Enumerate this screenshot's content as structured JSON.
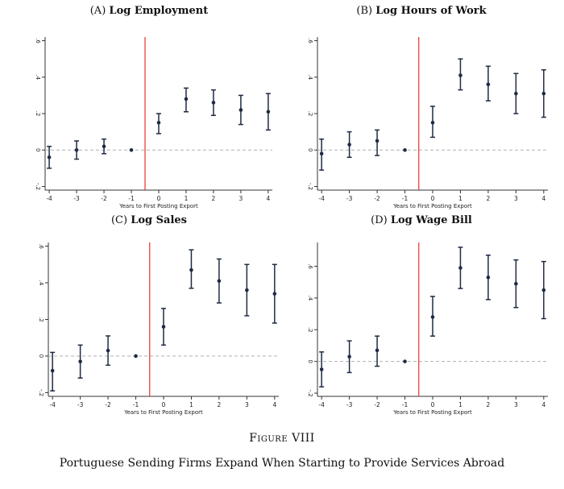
{
  "figure": {
    "number": "Figure VIII",
    "caption": "Portuguese Sending Firms Expand When Starting to Provide Services Abroad"
  },
  "colors": {
    "point": "#1f2a44",
    "event_line": "#e8302a",
    "zero_line": "#b0b0b0",
    "axis": "#333333"
  },
  "chart_data": [
    {
      "type": "scatter",
      "panel_letter": "(A)",
      "title": "Log Employment",
      "xlabel": "Years to First Posting Export",
      "ylabel": "",
      "x": [
        -4,
        -3,
        -2,
        -1,
        0,
        1,
        2,
        3,
        4
      ],
      "y": [
        -0.04,
        0.0,
        0.02,
        0.0,
        0.15,
        0.28,
        0.26,
        0.22,
        0.21
      ],
      "ci_low": [
        -0.1,
        -0.05,
        -0.02,
        0.0,
        0.09,
        0.21,
        0.19,
        0.14,
        0.11
      ],
      "ci_high": [
        0.02,
        0.05,
        0.06,
        0.0,
        0.2,
        0.34,
        0.33,
        0.3,
        0.31
      ],
      "xticks": [
        -4,
        -3,
        -2,
        -1,
        0,
        1,
        2,
        3,
        4
      ],
      "yticks": [
        -0.2,
        0,
        0.2,
        0.4,
        0.6
      ],
      "ytick_labels": [
        "-.2",
        "0",
        ".2",
        ".4",
        ".6"
      ],
      "ylim": [
        -0.22,
        0.62
      ],
      "xlim": [
        -4.15,
        4.15
      ],
      "event_line_x": -0.5,
      "reference_line_y": 0
    },
    {
      "type": "scatter",
      "panel_letter": "(B)",
      "title": "Log Hours of Work",
      "xlabel": "Years to First Posting Export",
      "ylabel": "",
      "x": [
        -4,
        -3,
        -2,
        -1,
        0,
        1,
        2,
        3,
        4
      ],
      "y": [
        -0.02,
        0.03,
        0.05,
        0.0,
        0.15,
        0.41,
        0.36,
        0.31,
        0.31
      ],
      "ci_low": [
        -0.11,
        -0.04,
        -0.03,
        0.0,
        0.07,
        0.33,
        0.27,
        0.2,
        0.18
      ],
      "ci_high": [
        0.06,
        0.1,
        0.11,
        0.0,
        0.24,
        0.5,
        0.46,
        0.42,
        0.44
      ],
      "xticks": [
        -4,
        -3,
        -2,
        -1,
        0,
        1,
        2,
        3,
        4
      ],
      "yticks": [
        -0.2,
        0,
        0.2,
        0.4,
        0.6
      ],
      "ytick_labels": [
        "-.2",
        "0",
        ".2",
        ".4",
        ".6"
      ],
      "ylim": [
        -0.22,
        0.62
      ],
      "xlim": [
        -4.15,
        4.15
      ],
      "event_line_x": -0.5,
      "reference_line_y": 0
    },
    {
      "type": "scatter",
      "panel_letter": "(C)",
      "title": "Log Sales",
      "xlabel": "Years to First Posting Export",
      "ylabel": "",
      "x": [
        -4,
        -3,
        -2,
        -1,
        0,
        1,
        2,
        3,
        4
      ],
      "y": [
        -0.08,
        -0.03,
        0.03,
        0.0,
        0.16,
        0.47,
        0.41,
        0.36,
        0.34
      ],
      "ci_low": [
        -0.19,
        -0.12,
        -0.05,
        0.0,
        0.06,
        0.37,
        0.29,
        0.22,
        0.18
      ],
      "ci_high": [
        0.02,
        0.06,
        0.11,
        0.0,
        0.26,
        0.58,
        0.53,
        0.5,
        0.5
      ],
      "xticks": [
        -4,
        -3,
        -2,
        -1,
        0,
        1,
        2,
        3,
        4
      ],
      "yticks": [
        -0.2,
        0,
        0.2,
        0.4,
        0.6
      ],
      "ytick_labels": [
        "-.2",
        "0",
        ".2",
        ".4",
        ".6"
      ],
      "ylim": [
        -0.22,
        0.62
      ],
      "xlim": [
        -4.15,
        4.15
      ],
      "event_line_x": -0.5,
      "reference_line_y": 0
    },
    {
      "type": "scatter",
      "panel_letter": "(D)",
      "title": "Log Wage Bill",
      "xlabel": "Years to First Posting Export",
      "ylabel": "",
      "x": [
        -4,
        -3,
        -2,
        -1,
        0,
        1,
        2,
        3,
        4
      ],
      "y": [
        -0.05,
        0.03,
        0.07,
        0.0,
        0.28,
        0.59,
        0.53,
        0.49,
        0.45
      ],
      "ci_low": [
        -0.16,
        -0.07,
        -0.03,
        0.0,
        0.16,
        0.46,
        0.39,
        0.34,
        0.27
      ],
      "ci_high": [
        0.06,
        0.13,
        0.16,
        0.0,
        0.41,
        0.72,
        0.67,
        0.64,
        0.63
      ],
      "xticks": [
        -4,
        -3,
        -2,
        -1,
        0,
        1,
        2,
        3,
        4
      ],
      "yticks": [
        -0.2,
        0,
        0.2,
        0.4,
        0.6
      ],
      "ytick_labels": [
        "-.2",
        "0",
        ".2",
        ".4",
        ".6"
      ],
      "ylim": [
        -0.22,
        0.75
      ],
      "xlim": [
        -4.15,
        4.15
      ],
      "event_line_x": -0.5,
      "reference_line_y": 0
    }
  ]
}
